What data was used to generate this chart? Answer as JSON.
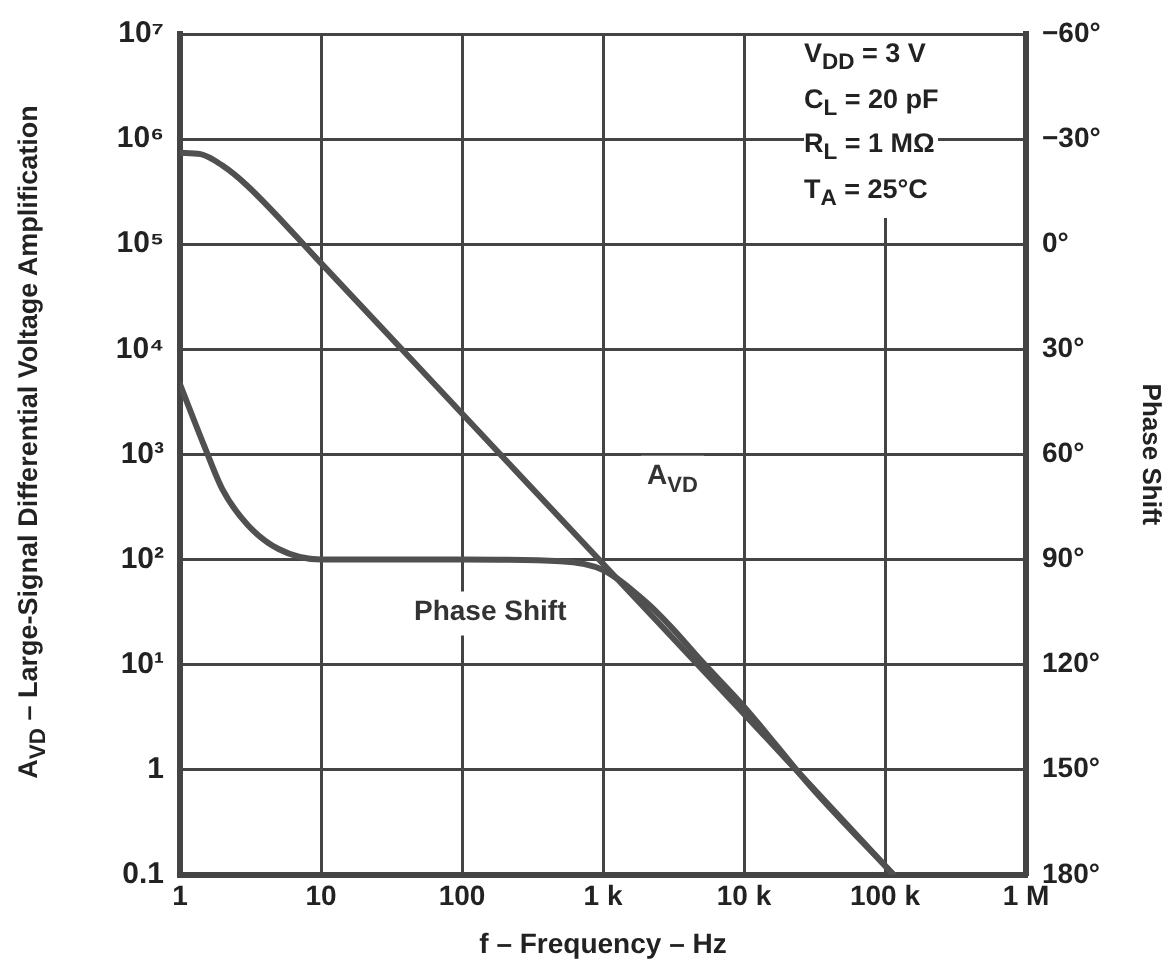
{
  "chart_data": {
    "type": "line",
    "xlabel": "f – Frequency – Hz",
    "ylabel": "A$_{VD}$ – Large-Signal Differential Voltage Amplification",
    "y2label": "Phase Shift",
    "log": "xy",
    "grid": true,
    "legend": false,
    "marker": "none",
    "line_style": "solid",
    "xlim": [
      1,
      1000000
    ],
    "xticks": [
      1,
      10,
      100,
      {
        "value": 1000,
        "label": "1 k"
      },
      {
        "value": 10000,
        "label": "10 k"
      },
      {
        "value": 100000,
        "label": "100 k"
      },
      {
        "value": 1000000,
        "label": "1 M"
      }
    ],
    "ylim": [
      0.1,
      10000000
    ],
    "yticks": [
      0.1,
      1,
      {
        "value": 10,
        "label": "10¹"
      },
      {
        "value": 100,
        "label": "10²"
      },
      {
        "value": 1000,
        "label": "10³"
      },
      {
        "value": 10000,
        "label": "10⁴"
      },
      {
        "value": 100000,
        "label": "10⁵"
      },
      {
        "value": 1000000,
        "label": "10⁶"
      },
      {
        "value": 10000000,
        "label": "10⁷"
      }
    ],
    "y2lim": [
      180,
      -60
    ],
    "y2ticks": [
      {
        "value": -60,
        "label": "−60°"
      },
      {
        "value": -30,
        "label": "−30°"
      },
      {
        "value": 0,
        "label": "0°"
      },
      {
        "value": 30,
        "label": "30°"
      },
      {
        "value": 60,
        "label": "60°"
      },
      {
        "value": 90,
        "label": "90°"
      },
      {
        "value": 120,
        "label": "120°"
      },
      {
        "value": 150,
        "label": "150°"
      },
      {
        "value": 180,
        "label": "180°"
      }
    ],
    "series": [
      {
        "name": "A$_{VD}$",
        "color": "#505050",
        "x": [
          1,
          1.4,
          2,
          3,
          10,
          100,
          1000,
          10000,
          115000
        ],
        "values": [
          740000,
          720000,
          560000,
          360000,
          66000,
          2450,
          91,
          3.4,
          0.1
        ]
      },
      {
        "name": "Phase Shift",
        "color": "#505050",
        "axis": "y2",
        "x": [
          1,
          1.5,
          2,
          3,
          5,
          10,
          100,
          500,
          1000,
          2000,
          3000,
          5000,
          10000,
          30000,
          115000
        ],
        "values": [
          40,
          58,
          70,
          80,
          87,
          90,
          90,
          90.5,
          93,
          102,
          109,
          119,
          132,
          155,
          180
        ]
      }
    ],
    "annotations": [
      "V$_{DD}$ = 3 V",
      "C$_{L}$ = 20 pF",
      "R$_{L}$ = 1 MΩ",
      "T$_{A}$ = 25°C"
    ]
  }
}
